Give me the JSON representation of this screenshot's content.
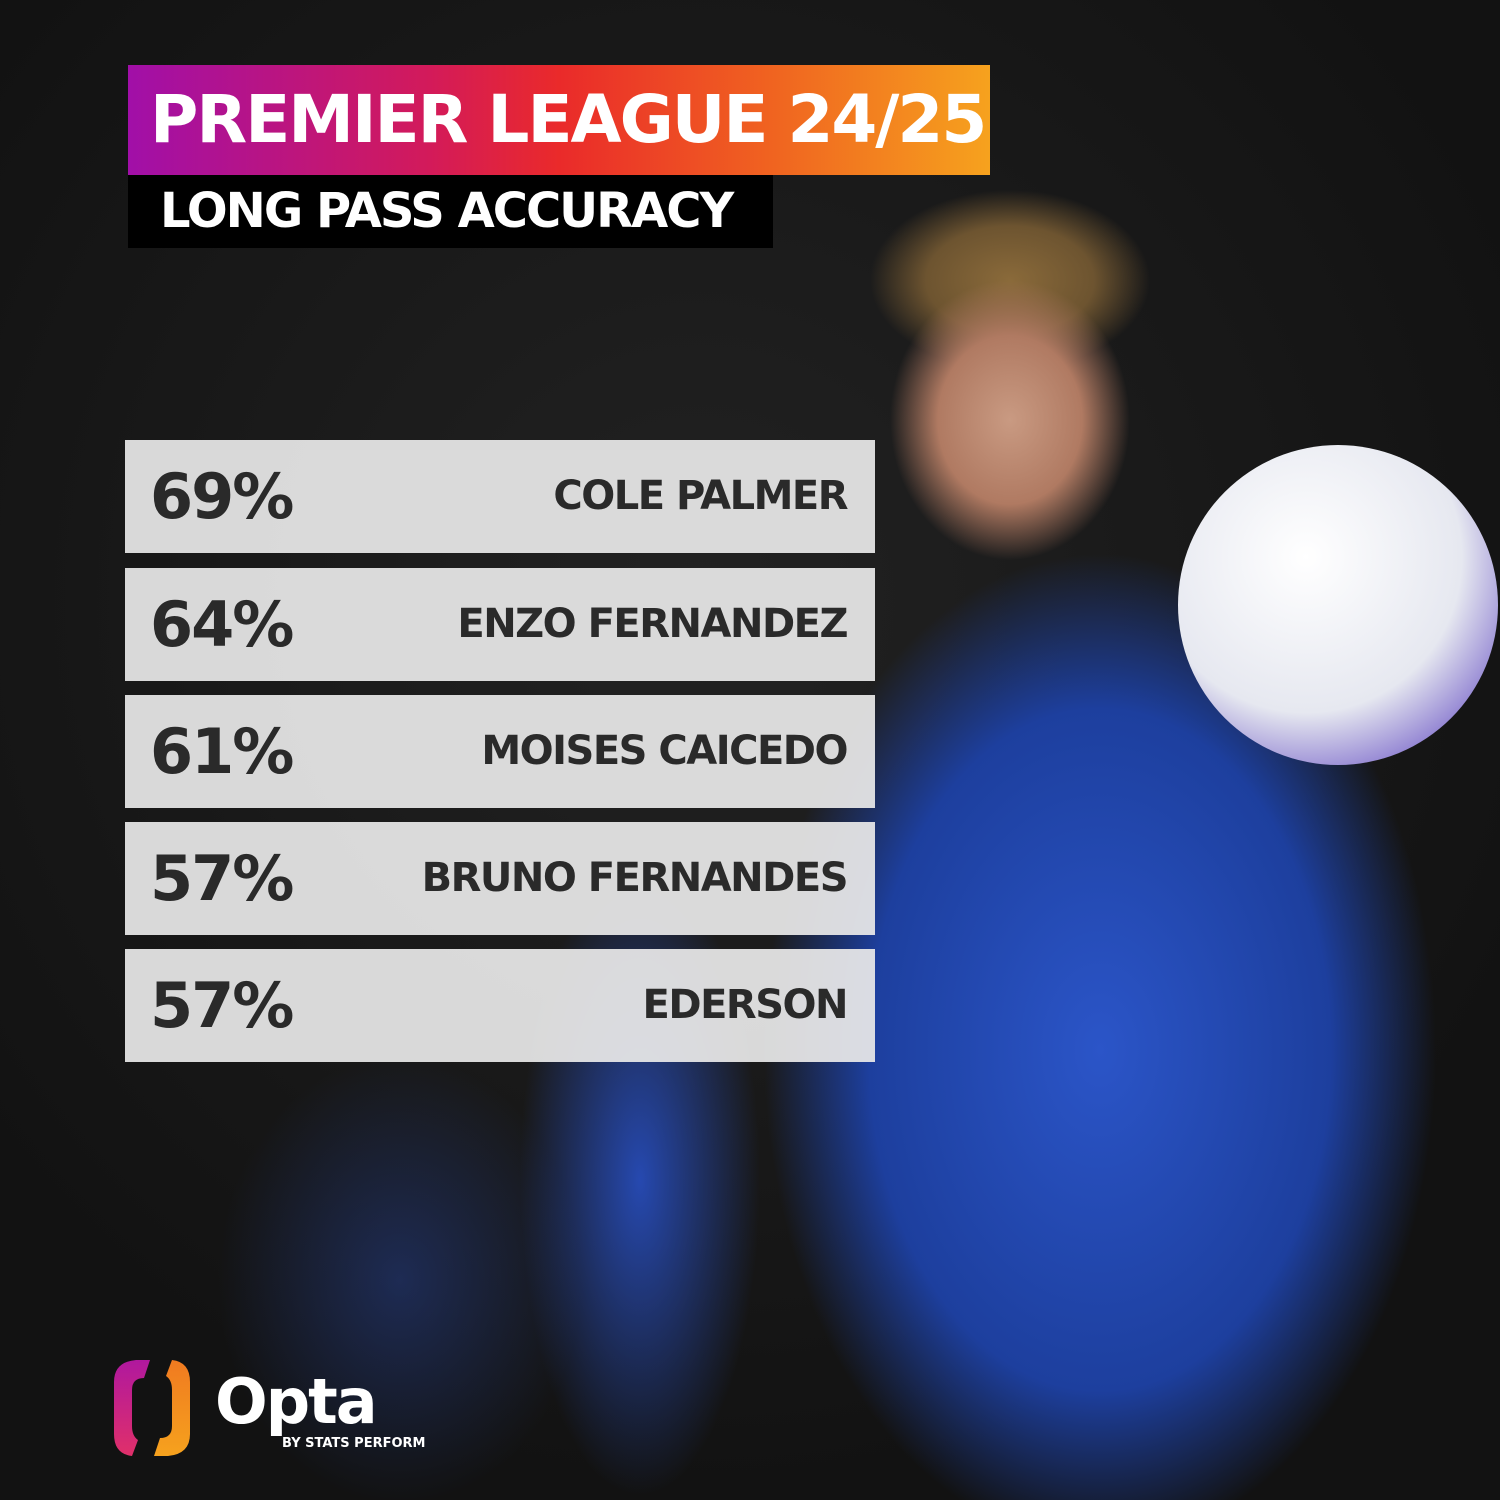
{
  "header": {
    "title": "PREMIER LEAGUE 24/25",
    "subtitle": "LONG PASS ACCURACY"
  },
  "colors": {
    "gradient_start": "#a10fa8",
    "gradient_mid": "#ea2a2a",
    "gradient_end": "#f6a21e",
    "row_bg": "#e8e8e8",
    "text": "#2a2a2a"
  },
  "chart_data": {
    "type": "table",
    "title": "PREMIER LEAGUE 24/25",
    "subtitle": "LONG PASS ACCURACY",
    "rows": [
      {
        "value": "69%",
        "player": "COLE PALMER"
      },
      {
        "value": "64%",
        "player": "ENZO FERNANDEZ"
      },
      {
        "value": "61%",
        "player": "MOISES CAICEDO"
      },
      {
        "value": "57%",
        "player": "BRUNO FERNANDES"
      },
      {
        "value": "57%",
        "player": "EDERSON"
      }
    ]
  },
  "brand": {
    "name": "Opta",
    "tagline": "BY STATS PERFORM",
    "logo_icon": "opta-logo-icon"
  }
}
